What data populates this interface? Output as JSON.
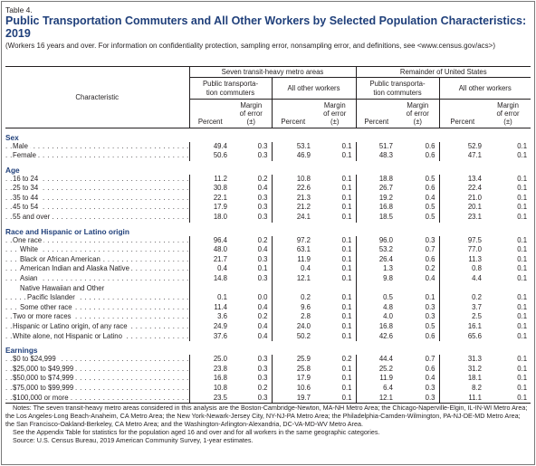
{
  "table_label": "Table 4.",
  "title": "Public Transportation Commuters and All Other Workers by Selected Population Characteristics: 2019",
  "subtitle": "(Workers 16 years and over. For information on confidentiality protection, sampling error, nonsampling error, and definitions, see <www.census.gov/acs>)",
  "header": {
    "characteristic": "Characteristic",
    "group1": "Seven transit-heavy metro areas",
    "group2": "Remainder of United States",
    "pub_transit": "Public transporta-tion commuters",
    "all_other": "All other workers",
    "percent": "Percent",
    "moe": "Margin of error (±)"
  },
  "sections": [
    {
      "title": "Sex",
      "rows": [
        {
          "label": "Male",
          "indent": 1,
          "v": [
            "49.4",
            "0.3",
            "53.1",
            "0.1",
            "51.7",
            "0.6",
            "52.9",
            "0.1"
          ]
        },
        {
          "label": "Female",
          "indent": 1,
          "v": [
            "50.6",
            "0.3",
            "46.9",
            "0.1",
            "48.3",
            "0.6",
            "47.1",
            "0.1"
          ]
        }
      ]
    },
    {
      "title": "Age",
      "rows": [
        {
          "label": "16 to 24",
          "indent": 1,
          "v": [
            "11.2",
            "0.2",
            "10.8",
            "0.1",
            "18.8",
            "0.5",
            "13.4",
            "0.1"
          ]
        },
        {
          "label": "25 to 34",
          "indent": 1,
          "v": [
            "30.8",
            "0.4",
            "22.6",
            "0.1",
            "26.7",
            "0.6",
            "22.4",
            "0.1"
          ]
        },
        {
          "label": "35 to 44",
          "indent": 1,
          "v": [
            "22.1",
            "0.3",
            "21.3",
            "0.1",
            "19.2",
            "0.4",
            "21.0",
            "0.1"
          ]
        },
        {
          "label": "45 to 54",
          "indent": 1,
          "v": [
            "17.9",
            "0.3",
            "21.2",
            "0.1",
            "16.8",
            "0.5",
            "20.1",
            "0.1"
          ]
        },
        {
          "label": "55 and over",
          "indent": 1,
          "v": [
            "18.0",
            "0.3",
            "24.1",
            "0.1",
            "18.5",
            "0.5",
            "23.1",
            "0.1"
          ]
        }
      ]
    },
    {
      "title": "Race and Hispanic or Latino origin",
      "rows": [
        {
          "label": "One race",
          "indent": 1,
          "v": [
            "96.4",
            "0.2",
            "97.2",
            "0.1",
            "96.0",
            "0.3",
            "97.5",
            "0.1"
          ]
        },
        {
          "label": "White",
          "indent": 2,
          "v": [
            "48.0",
            "0.4",
            "63.1",
            "0.1",
            "53.2",
            "0.7",
            "77.0",
            "0.1"
          ]
        },
        {
          "label": "Black or African American",
          "indent": 2,
          "v": [
            "21.7",
            "0.3",
            "11.9",
            "0.1",
            "26.4",
            "0.6",
            "11.3",
            "0.1"
          ]
        },
        {
          "label": "American Indian and Alaska Native",
          "indent": 2,
          "v": [
            "0.4",
            "0.1",
            "0.4",
            "0.1",
            "1.3",
            "0.2",
            "0.8",
            "0.1"
          ]
        },
        {
          "label": "Asian",
          "indent": 2,
          "v": [
            "14.8",
            "0.3",
            "12.1",
            "0.1",
            "9.8",
            "0.4",
            "4.4",
            "0.1"
          ]
        },
        {
          "label": "Native Hawaiian and Other",
          "indent": 2,
          "nodots": true,
          "v": [
            "",
            "",
            "",
            "",
            "",
            "",
            "",
            ""
          ]
        },
        {
          "label": "Pacific Islander",
          "indent": 3,
          "v": [
            "0.1",
            "0.0",
            "0.2",
            "0.1",
            "0.5",
            "0.1",
            "0.2",
            "0.1"
          ]
        },
        {
          "label": "Some other race",
          "indent": 2,
          "v": [
            "11.4",
            "0.4",
            "9.6",
            "0.1",
            "4.8",
            "0.3",
            "3.7",
            "0.1"
          ]
        },
        {
          "label": "Two or more races",
          "indent": 1,
          "v": [
            "3.6",
            "0.2",
            "2.8",
            "0.1",
            "4.0",
            "0.3",
            "2.5",
            "0.1"
          ]
        },
        {
          "label": "Hispanic or Latino origin, of any race",
          "indent": 1,
          "v": [
            "24.9",
            "0.4",
            "24.0",
            "0.1",
            "16.8",
            "0.5",
            "16.1",
            "0.1"
          ]
        },
        {
          "label": "White alone, not Hispanic or Latino",
          "indent": 1,
          "v": [
            "37.6",
            "0.4",
            "50.2",
            "0.1",
            "42.6",
            "0.6",
            "65.6",
            "0.1"
          ]
        }
      ]
    },
    {
      "title": "Earnings",
      "rows": [
        {
          "label": "$0 to $24,999",
          "indent": 1,
          "v": [
            "25.0",
            "0.3",
            "25.9",
            "0.2",
            "44.4",
            "0.7",
            "31.3",
            "0.1"
          ]
        },
        {
          "label": "$25,000 to $49,999",
          "indent": 1,
          "v": [
            "23.8",
            "0.3",
            "25.8",
            "0.1",
            "25.2",
            "0.6",
            "31.2",
            "0.1"
          ]
        },
        {
          "label": "$50,000 to $74,999",
          "indent": 1,
          "v": [
            "16.8",
            "0.3",
            "17.9",
            "0.1",
            "11.9",
            "0.4",
            "18.1",
            "0.1"
          ]
        },
        {
          "label": "$75,000 to $99,999",
          "indent": 1,
          "v": [
            "10.8",
            "0.2",
            "10.6",
            "0.1",
            "6.4",
            "0.3",
            "8.2",
            "0.1"
          ]
        },
        {
          "label": "$100,000 or more",
          "indent": 1,
          "v": [
            "23.5",
            "0.3",
            "19.7",
            "0.1",
            "12.1",
            "0.3",
            "11.1",
            "0.1"
          ]
        }
      ]
    }
  ],
  "notes": [
    "Notes: The seven transit-heavy metro areas considered in this analysis are the Boston-Cambridge-Newton, MA-NH Metro Area; the Chicago-Naperville-Elgin, IL-IN-WI Metro Area; the Los Angeles-Long Beach-Anaheim, CA Metro Area; the New York-Newark-Jersey City, NY-NJ-PA Metro Area; the Philadelphia-Camden-Wilmington, PA-NJ-DE-MD Metro Area; the San Francisco-Oakland-Berkeley, CA Metro Area; and the Washington-Arlington-Alexandria, DC-VA-MD-WV Metro Area.",
    "See the Appendix Table for statistics for the population aged 16 and over and for all workers in the same geographic categories.",
    "Source: U.S. Census Bureau, 2019 American Community Survey, 1-year estimates."
  ],
  "colors": {
    "title": "#1f3f7a",
    "text": "#231f20",
    "border": "#7a7a7a"
  }
}
